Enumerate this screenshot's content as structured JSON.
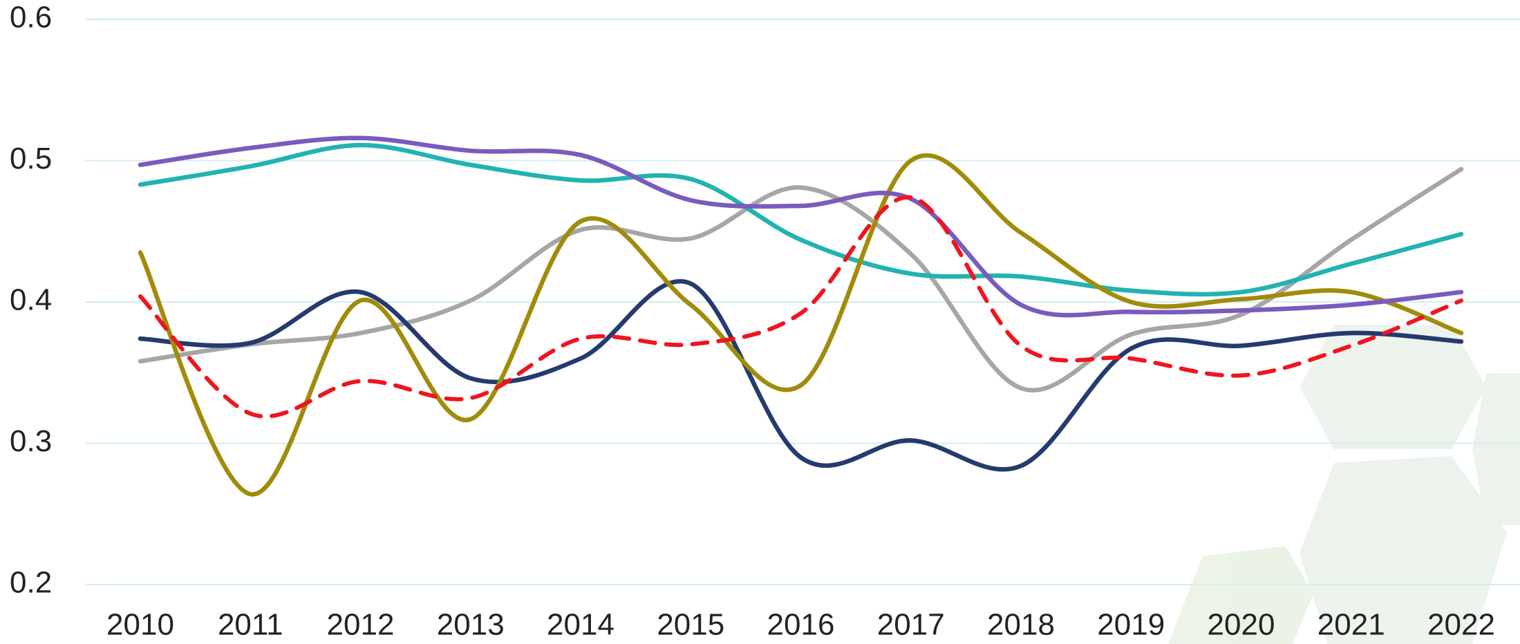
{
  "chart_data": {
    "type": "line",
    "categories": [
      "2010",
      "2011",
      "2012",
      "2013",
      "2014",
      "2015",
      "2016",
      "2017",
      "2018",
      "2019",
      "2020",
      "2021",
      "2022"
    ],
    "series": [
      {
        "color": "#a6a6a6",
        "values": [
          0.358,
          0.37,
          0.378,
          0.401,
          0.451,
          0.445,
          0.481,
          0.434,
          0.339,
          0.377,
          0.391,
          0.444,
          0.494
        ]
      },
      {
        "color": "#22b2b2",
        "values": [
          0.483,
          0.496,
          0.511,
          0.497,
          0.486,
          0.487,
          0.444,
          0.42,
          0.418,
          0.408,
          0.407,
          0.427,
          0.448
        ]
      },
      {
        "color": "#253a6e",
        "values": [
          0.374,
          0.371,
          0.407,
          0.346,
          0.36,
          0.413,
          0.29,
          0.302,
          0.284,
          0.367,
          0.369,
          0.378,
          0.372
        ]
      },
      {
        "color": "#a08c0a",
        "values": [
          0.435,
          0.264,
          0.401,
          0.317,
          0.457,
          0.398,
          0.341,
          0.5,
          0.449,
          0.4,
          0.402,
          0.407,
          0.378
        ]
      },
      {
        "color": "#7a5bbd",
        "values": [
          0.497,
          0.509,
          0.516,
          0.507,
          0.504,
          0.472,
          0.468,
          0.473,
          0.398,
          0.393,
          0.394,
          0.398,
          0.407
        ]
      },
      {
        "color": "#f0141e",
        "dash": true,
        "values": [
          0.404,
          0.321,
          0.344,
          0.332,
          0.374,
          0.37,
          0.392,
          0.474,
          0.369,
          0.36,
          0.348,
          0.369,
          0.401
        ]
      }
    ],
    "ylim": [
      0.2,
      0.6
    ],
    "yticks": [
      0.2,
      0.3,
      0.4,
      0.5,
      0.6
    ],
    "grid": true,
    "smooth": true
  }
}
